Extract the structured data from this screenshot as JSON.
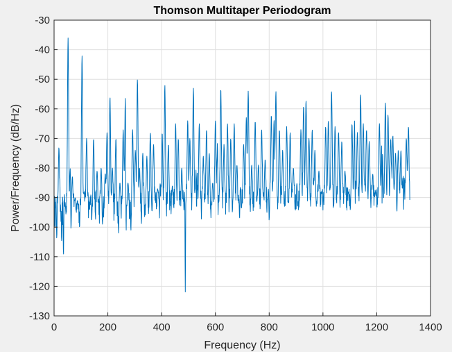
{
  "chart_data": {
    "type": "line",
    "title": "Thomson Multitaper Periodogram",
    "xlabel": "Frequency (Hz)",
    "ylabel": "Power/Frequency (dB/Hz)",
    "xlim": [
      0,
      1400
    ],
    "ylim": [
      -130,
      -30
    ],
    "xticks": [
      0,
      200,
      400,
      600,
      800,
      1000,
      1200,
      1400
    ],
    "yticks": [
      -30,
      -40,
      -50,
      -60,
      -70,
      -80,
      -90,
      -100,
      -110,
      -120,
      -130
    ],
    "grid": true,
    "line_color": "#0072bd",
    "x_range": [
      0,
      1323
    ],
    "baseline_db": -93,
    "noise_floor_db": [
      -100,
      -89
    ],
    "peaks": [
      {
        "x": 12,
        "y": -93
      },
      {
        "x": 18,
        "y": -73
      },
      {
        "x": 37,
        "y": -89
      },
      {
        "x": 52,
        "y": -36
      },
      {
        "x": 60,
        "y": -80
      },
      {
        "x": 68,
        "y": -83
      },
      {
        "x": 78,
        "y": -90
      },
      {
        "x": 87,
        "y": -91
      },
      {
        "x": 104,
        "y": -42
      },
      {
        "x": 112,
        "y": -88
      },
      {
        "x": 121,
        "y": -70
      },
      {
        "x": 137,
        "y": -89
      },
      {
        "x": 147,
        "y": -70
      },
      {
        "x": 160,
        "y": -81
      },
      {
        "x": 175,
        "y": -80
      },
      {
        "x": 190,
        "y": -82
      },
      {
        "x": 197,
        "y": -68
      },
      {
        "x": 208,
        "y": -56
      },
      {
        "x": 217,
        "y": -80
      },
      {
        "x": 230,
        "y": -70
      },
      {
        "x": 245,
        "y": -85
      },
      {
        "x": 257,
        "y": -67
      },
      {
        "x": 265,
        "y": -56
      },
      {
        "x": 275,
        "y": -85
      },
      {
        "x": 292,
        "y": -67
      },
      {
        "x": 302,
        "y": -74
      },
      {
        "x": 310,
        "y": -50
      },
      {
        "x": 318,
        "y": -80
      },
      {
        "x": 330,
        "y": -75
      },
      {
        "x": 345,
        "y": -76
      },
      {
        "x": 358,
        "y": -68
      },
      {
        "x": 370,
        "y": -72
      },
      {
        "x": 385,
        "y": -87
      },
      {
        "x": 393,
        "y": -82
      },
      {
        "x": 402,
        "y": -68
      },
      {
        "x": 412,
        "y": -52
      },
      {
        "x": 425,
        "y": -72
      },
      {
        "x": 440,
        "y": -86
      },
      {
        "x": 452,
        "y": -65
      },
      {
        "x": 462,
        "y": -70
      },
      {
        "x": 475,
        "y": -80
      },
      {
        "x": 488,
        "y": -84
      },
      {
        "x": 497,
        "y": -64
      },
      {
        "x": 505,
        "y": -70
      },
      {
        "x": 518,
        "y": -53
      },
      {
        "x": 530,
        "y": -72
      },
      {
        "x": 540,
        "y": -65
      },
      {
        "x": 555,
        "y": -76
      },
      {
        "x": 567,
        "y": -67
      },
      {
        "x": 577,
        "y": -75
      },
      {
        "x": 590,
        "y": -85
      },
      {
        "x": 600,
        "y": -64
      },
      {
        "x": 608,
        "y": -70
      },
      {
        "x": 620,
        "y": -53
      },
      {
        "x": 632,
        "y": -72
      },
      {
        "x": 645,
        "y": -65
      },
      {
        "x": 657,
        "y": -70
      },
      {
        "x": 670,
        "y": -65
      },
      {
        "x": 680,
        "y": -79
      },
      {
        "x": 692,
        "y": -86
      },
      {
        "x": 705,
        "y": -72
      },
      {
        "x": 715,
        "y": -63
      },
      {
        "x": 722,
        "y": -54
      },
      {
        "x": 735,
        "y": -79
      },
      {
        "x": 748,
        "y": -64
      },
      {
        "x": 760,
        "y": -79
      },
      {
        "x": 772,
        "y": -67
      },
      {
        "x": 785,
        "y": -77
      },
      {
        "x": 797,
        "y": -87
      },
      {
        "x": 808,
        "y": -62
      },
      {
        "x": 818,
        "y": -64
      },
      {
        "x": 825,
        "y": -54
      },
      {
        "x": 838,
        "y": -67
      },
      {
        "x": 850,
        "y": -74
      },
      {
        "x": 865,
        "y": -66
      },
      {
        "x": 878,
        "y": -68
      },
      {
        "x": 890,
        "y": -80
      },
      {
        "x": 902,
        "y": -85
      },
      {
        "x": 918,
        "y": -67
      },
      {
        "x": 928,
        "y": -59
      },
      {
        "x": 937,
        "y": -57
      },
      {
        "x": 948,
        "y": -70
      },
      {
        "x": 960,
        "y": -67
      },
      {
        "x": 970,
        "y": -74
      },
      {
        "x": 985,
        "y": -81
      },
      {
        "x": 995,
        "y": -88
      },
      {
        "x": 1010,
        "y": -66
      },
      {
        "x": 1020,
        "y": -64
      },
      {
        "x": 1032,
        "y": -54
      },
      {
        "x": 1045,
        "y": -66
      },
      {
        "x": 1058,
        "y": -68
      },
      {
        "x": 1070,
        "y": -71
      },
      {
        "x": 1082,
        "y": -81
      },
      {
        "x": 1095,
        "y": -88
      },
      {
        "x": 1108,
        "y": -65
      },
      {
        "x": 1118,
        "y": -62
      },
      {
        "x": 1128,
        "y": -68
      },
      {
        "x": 1140,
        "y": -55
      },
      {
        "x": 1150,
        "y": -65
      },
      {
        "x": 1162,
        "y": -67
      },
      {
        "x": 1172,
        "y": -71
      },
      {
        "x": 1185,
        "y": -82
      },
      {
        "x": 1195,
        "y": -88
      },
      {
        "x": 1210,
        "y": -65
      },
      {
        "x": 1220,
        "y": -60
      },
      {
        "x": 1232,
        "y": -58
      },
      {
        "x": 1242,
        "y": -62
      },
      {
        "x": 1252,
        "y": -70
      },
      {
        "x": 1260,
        "y": -69
      },
      {
        "x": 1270,
        "y": -75
      },
      {
        "x": 1280,
        "y": -74
      },
      {
        "x": 1290,
        "y": -74
      },
      {
        "x": 1300,
        "y": -76
      },
      {
        "x": 1310,
        "y": -70
      },
      {
        "x": 1318,
        "y": -66
      }
    ],
    "dips": [
      {
        "x": 10,
        "y": -104
      },
      {
        "x": 28,
        "y": -105
      },
      {
        "x": 35,
        "y": -110
      },
      {
        "x": 63,
        "y": -101
      },
      {
        "x": 95,
        "y": -100
      },
      {
        "x": 140,
        "y": -98
      },
      {
        "x": 180,
        "y": -99
      },
      {
        "x": 240,
        "y": -102
      },
      {
        "x": 268,
        "y": -102
      },
      {
        "x": 286,
        "y": -101
      },
      {
        "x": 325,
        "y": -99
      },
      {
        "x": 392,
        "y": -97
      },
      {
        "x": 488,
        "y": -122
      },
      {
        "x": 530,
        "y": -95
      },
      {
        "x": 610,
        "y": -96
      },
      {
        "x": 690,
        "y": -97
      },
      {
        "x": 800,
        "y": -98
      },
      {
        "x": 900,
        "y": -94
      },
      {
        "x": 1040,
        "y": -93
      },
      {
        "x": 1120,
        "y": -92
      },
      {
        "x": 1220,
        "y": -93
      },
      {
        "x": 1275,
        "y": -95
      },
      {
        "x": 1300,
        "y": -94
      }
    ]
  }
}
